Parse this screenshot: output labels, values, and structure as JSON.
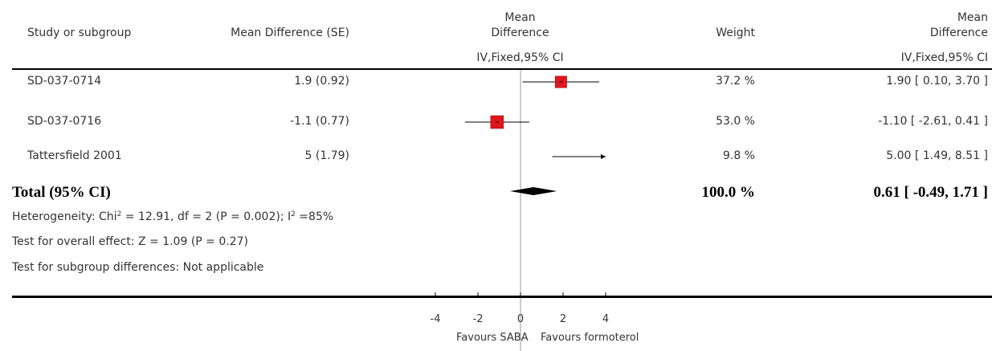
{
  "header": {
    "study_label": "Study or subgroup",
    "md_se_label": "Mean Difference (SE)",
    "plot_label_line1": "Mean",
    "plot_label_line2": "Difference",
    "plot_method": "IV,Fixed,95% CI",
    "weight_label": "Weight",
    "result_label_line1": "Mean",
    "result_label_line2": "Difference",
    "result_method": "IV,Fixed,95% CI"
  },
  "total": {
    "label": "Total (95% CI)",
    "weight": "100.0 %",
    "ci_text": "0.61 [ -0.49, 1.71 ]"
  },
  "notes": {
    "heterogeneity_prefix": "Heterogeneity: Chi",
    "heterogeneity_mid": " = 12.91, df = 2 (P = 0.002); I",
    "heterogeneity_suffix": " =85%",
    "sup": "2",
    "overall_effect": "Test for overall effect: Z = 1.09 (P = 0.27)",
    "subgroup": "Test for subgroup differences: Not applicable"
  },
  "axis": {
    "favours_left": "Favours SABA",
    "favours_right": "Favours formoterol"
  },
  "chart_data": {
    "type": "forest",
    "xlim": [
      -4,
      4
    ],
    "ticks": [
      -4,
      -2,
      0,
      2,
      4
    ],
    "tick_labels": [
      "-4",
      "-2",
      "0",
      "2",
      "4"
    ],
    "studies": [
      {
        "name": "SD-037-0714",
        "md_se": "1.9 (0.92)",
        "estimate": 1.9,
        "lower": 0.1,
        "upper": 3.7,
        "weight_pct": 37.2,
        "weight": "37.2 %",
        "ci_text": "1.90 [ 0.10, 3.70 ]"
      },
      {
        "name": "SD-037-0716",
        "md_se": "-1.1 (0.77)",
        "estimate": -1.1,
        "lower": -2.61,
        "upper": 0.41,
        "weight_pct": 53.0,
        "weight": "53.0 %",
        "ci_text": "-1.10 [ -2.61, 0.41 ]"
      },
      {
        "name": "Tattersfield 2001",
        "md_se": "5 (1.79)",
        "estimate": 5.0,
        "lower": 1.49,
        "upper": 8.51,
        "weight_pct": 9.8,
        "weight": "9.8 %",
        "ci_text": "5.00 [ 1.49, 8.51 ]"
      }
    ],
    "pooled": {
      "estimate": 0.61,
      "lower": -0.49,
      "upper": 1.71
    }
  }
}
